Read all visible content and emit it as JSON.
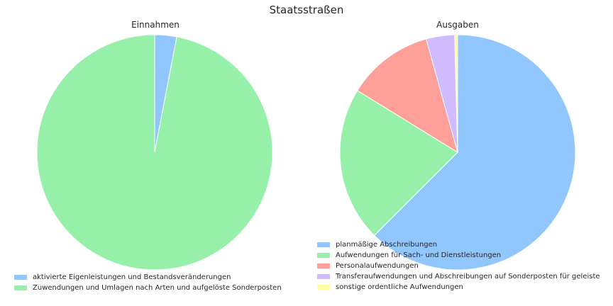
{
  "title": "Staatsstraßen",
  "chart_data": [
    {
      "type": "pie",
      "title": "Einnahmen",
      "start_angle": 90,
      "direction": "clockwise",
      "slices": [
        {
          "label": "aktivierte Eigenleistungen und Bestandsveränderungen",
          "value": 3.0,
          "color": "#92c6ff"
        },
        {
          "label": "Zuwendungen und Umlagen nach Arten und aufgelöste Sonderposten",
          "value": 97.0,
          "color": "#97f0aa"
        }
      ],
      "legend": "lower-left"
    },
    {
      "type": "pie",
      "title": "Ausgaben",
      "start_angle": 90,
      "direction": "clockwise",
      "slices": [
        {
          "label": "planmäßige Abschreibungen",
          "value": 62.5,
          "color": "#92c6ff"
        },
        {
          "label": "Aufwendungen für Sach- und Dienstleistungen",
          "value": 21.3,
          "color": "#97f0aa"
        },
        {
          "label": "Personalaufwendungen",
          "value": 11.9,
          "color": "#ff9f9a"
        },
        {
          "label": "Transferaufwendungen und Abschreibungen auf Sonderposten für geleiste",
          "value": 3.9,
          "color": "#d0bbff"
        },
        {
          "label": "sonstige ordentliche Aufwendungen",
          "value": 0.4,
          "color": "#fffea3"
        }
      ],
      "legend": "lower-left"
    }
  ]
}
